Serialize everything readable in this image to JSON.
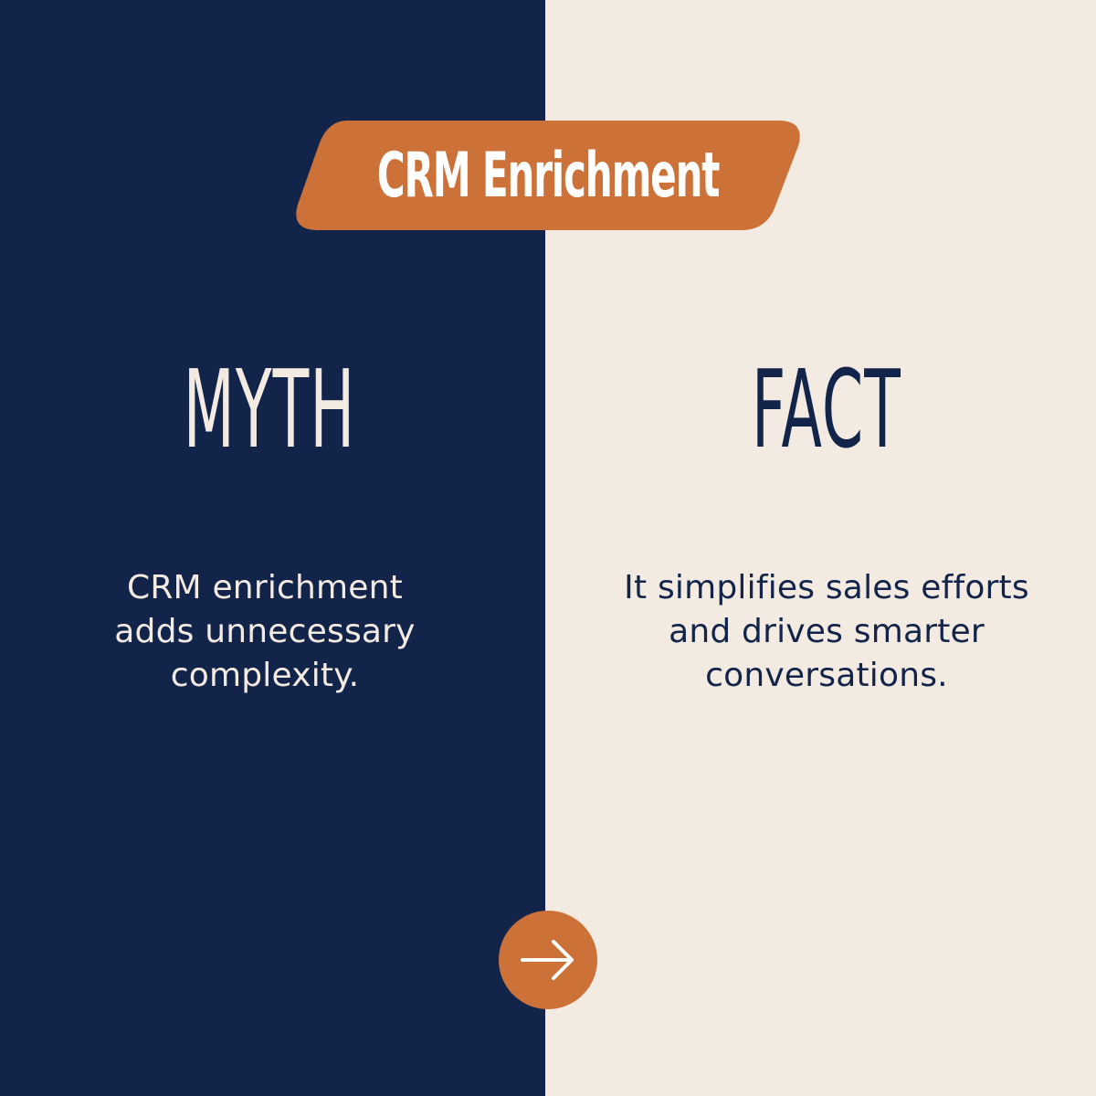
{
  "colors": {
    "navy": "#12244A",
    "cream": "#F3EBE2",
    "orange": "#CC7238",
    "white": "#FFFFFF"
  },
  "badge": {
    "title": "CRM Enrichment"
  },
  "myth": {
    "heading": "MYTH",
    "text": "CRM enrichment adds unnecessary complexity."
  },
  "fact": {
    "heading": "FACT",
    "text": "It simplifies sales efforts and drives smarter conversations."
  },
  "next_button": {
    "icon": "arrow-right-icon"
  }
}
